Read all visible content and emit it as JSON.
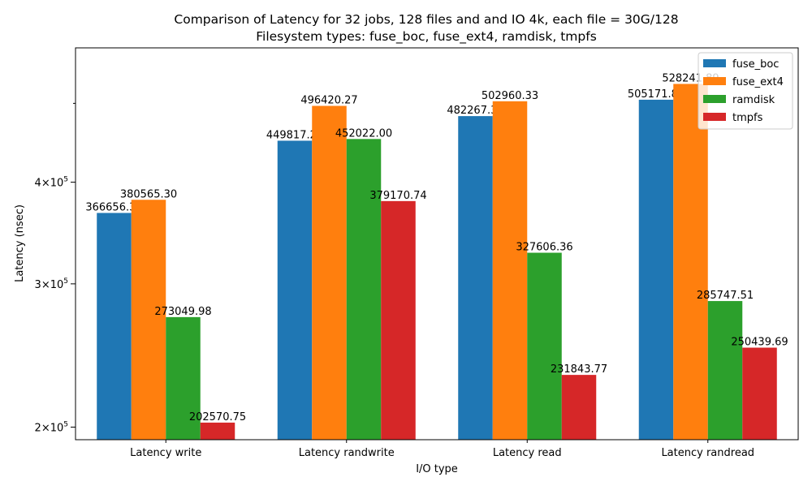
{
  "chart_data": {
    "type": "bar",
    "title_line1": "Comparison of Latency for 32 jobs, 128 files and  and IO 4k, each file = 30G/128",
    "title_line2": "Filesystem types: fuse_boc, fuse_ext4, ramdisk, tmpfs",
    "xlabel": "I/O type",
    "ylabel": "Latency (nsec)",
    "yscale": "log",
    "ylim": [
      193000,
      585000
    ],
    "yticks": [
      {
        "value": 200000,
        "base": "2",
        "exp": "5"
      },
      {
        "value": 300000,
        "base": "3",
        "exp": "5"
      },
      {
        "value": 400000,
        "base": "4",
        "exp": "5"
      }
    ],
    "yminor_ticks": [
      500000
    ],
    "legend_position": "upper right",
    "categories": [
      "Latency write",
      "Latency randwrite",
      "Latency read",
      "Latency randread"
    ],
    "series": [
      {
        "name": "fuse_boc",
        "color": "#1f77b4",
        "values": [
          366656.3,
          449817.27,
          482267.33,
          505171.88
        ],
        "labels": [
          "366656.30",
          "449817.27",
          "482267.33",
          "505171.88"
        ]
      },
      {
        "name": "fuse_ext4",
        "color": "#ff7f0e",
        "values": [
          380565.3,
          496420.27,
          502960.33,
          528241.89
        ],
        "labels": [
          "380565.30",
          "496420.27",
          "502960.33",
          "528241.89"
        ]
      },
      {
        "name": "ramdisk",
        "color": "#2ca02c",
        "values": [
          273049.98,
          452022.0,
          327606.36,
          285747.51
        ],
        "labels": [
          "273049.98",
          "452022.00",
          "327606.36",
          "285747.51"
        ]
      },
      {
        "name": "tmpfs",
        "color": "#d62728",
        "values": [
          202570.75,
          379170.74,
          231843.77,
          250439.69
        ],
        "labels": [
          "202570.75",
          "379170.74",
          "231843.77",
          "250439.69"
        ]
      }
    ]
  }
}
